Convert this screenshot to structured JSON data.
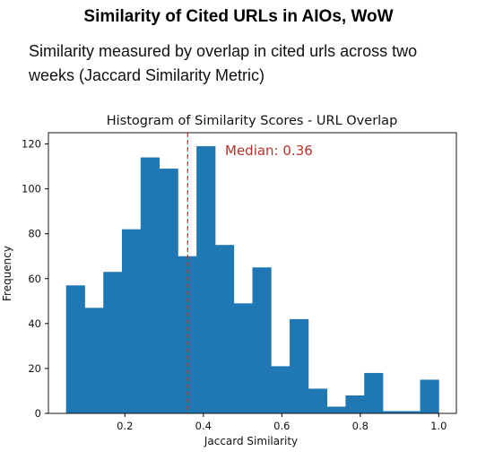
{
  "header": {
    "title": "Similarity of Cited URLs in AIOs, WoW",
    "subtitle": "Similarity measured by overlap in cited urls across two weeks (Jaccard Similarity Metric)"
  },
  "chart_data": {
    "type": "bar",
    "title": "Histogram of Similarity Scores - URL Overlap",
    "xlabel": "Jaccard Similarity",
    "ylabel": "Frequency",
    "bin_edges": [
      0.05,
      0.0975,
      0.145,
      0.1925,
      0.24,
      0.2875,
      0.335,
      0.3825,
      0.43,
      0.4775,
      0.525,
      0.5725,
      0.62,
      0.6675,
      0.715,
      0.7625,
      0.81,
      0.8575,
      0.905,
      0.9525,
      1.0
    ],
    "values": [
      57,
      47,
      63,
      82,
      114,
      109,
      70,
      119,
      75,
      49,
      65,
      21,
      42,
      11,
      3,
      8,
      18,
      1,
      1,
      15
    ],
    "xlim": [
      0.005,
      1.045
    ],
    "ylim": [
      0,
      125
    ],
    "xticks": [
      0.2,
      0.4,
      0.6,
      0.8,
      1.0
    ],
    "xtick_labels": [
      "0.2",
      "0.4",
      "0.6",
      "0.8",
      "1.0"
    ],
    "yticks": [
      0,
      20,
      40,
      60,
      80,
      100,
      120
    ],
    "ytick_labels": [
      "0",
      "20",
      "40",
      "60",
      "80",
      "100",
      "120"
    ],
    "median": 0.36,
    "median_label": "Median: 0.36",
    "bar_color": "#1f77b4",
    "median_color": "#d62728",
    "annotation_color": "#b5332a",
    "grid": false
  }
}
